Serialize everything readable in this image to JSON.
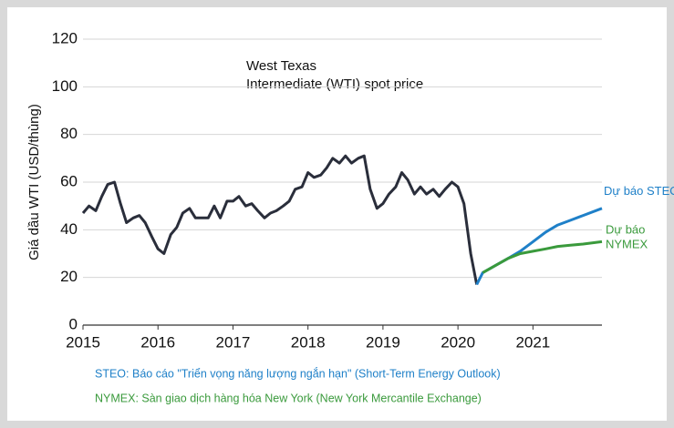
{
  "chart_data": {
    "type": "line",
    "title_lines": [
      "West Texas",
      "Intermediate  (WTI) spot price"
    ],
    "y_label": "Giá dầu WTI (USD/thùng)",
    "xlim": [
      2015,
      2021.92
    ],
    "xticks": [
      2015,
      2016,
      2017,
      2018,
      2019,
      2020,
      2021
    ],
    "ylim": [
      0,
      120
    ],
    "yticks": [
      0,
      20,
      40,
      60,
      80,
      100,
      120
    ],
    "grid": true,
    "series": [
      {
        "name": "WTI",
        "color": "#2a2e3b",
        "x": [
          2015.0,
          2015.08,
          2015.17,
          2015.25,
          2015.33,
          2015.42,
          2015.5,
          2015.58,
          2015.67,
          2015.75,
          2015.83,
          2015.92,
          2016.0,
          2016.08,
          2016.17,
          2016.25,
          2016.33,
          2016.42,
          2016.5,
          2016.58,
          2016.67,
          2016.75,
          2016.83,
          2016.92,
          2017.0,
          2017.08,
          2017.17,
          2017.25,
          2017.33,
          2017.42,
          2017.5,
          2017.58,
          2017.67,
          2017.75,
          2017.83,
          2017.92,
          2018.0,
          2018.08,
          2018.17,
          2018.25,
          2018.33,
          2018.42,
          2018.5,
          2018.58,
          2018.67,
          2018.75,
          2018.83,
          2018.92,
          2019.0,
          2019.08,
          2019.17,
          2019.25,
          2019.33,
          2019.42,
          2019.5,
          2019.58,
          2019.67,
          2019.75,
          2019.83,
          2019.92,
          2020.0,
          2020.08,
          2020.17,
          2020.25
        ],
        "values": [
          47,
          50,
          48,
          54,
          59,
          60,
          51,
          43,
          45,
          46,
          43,
          37,
          32,
          30,
          38,
          41,
          47,
          49,
          45,
          45,
          45,
          50,
          45,
          52,
          52,
          54,
          50,
          51,
          48,
          45,
          47,
          48,
          50,
          52,
          57,
          58,
          64,
          62,
          63,
          66,
          70,
          68,
          71,
          68,
          70,
          71,
          57,
          49,
          51,
          55,
          58,
          64,
          61,
          55,
          58,
          55,
          57,
          54,
          57,
          60,
          58,
          51,
          30,
          17
        ]
      },
      {
        "name": "Dự báo STEO",
        "color": "#1f80c8",
        "x": [
          2020.25,
          2020.33,
          2020.5,
          2020.67,
          2020.83,
          2021.0,
          2021.17,
          2021.33,
          2021.5,
          2021.67,
          2021.92
        ],
        "values": [
          17,
          22,
          25,
          28,
          31,
          35,
          39,
          42,
          44,
          46,
          49
        ]
      },
      {
        "name": "Dự báo NYMEX",
        "color": "#3a9a3c",
        "x": [
          2020.33,
          2020.5,
          2020.67,
          2020.83,
          2021.0,
          2021.17,
          2021.33,
          2021.5,
          2021.67,
          2021.92
        ],
        "values": [
          22,
          25,
          28,
          30,
          31,
          32,
          33,
          33.5,
          34,
          35
        ]
      }
    ],
    "notes": [
      "STEO: Báo cáo \"Triển vọng năng lượng ngắn hạn\" (Short-Term Energy Outlook)",
      "NYMEX: Sàn giao dịch hàng hóa New York (New York Mercantile Exchange)"
    ]
  }
}
